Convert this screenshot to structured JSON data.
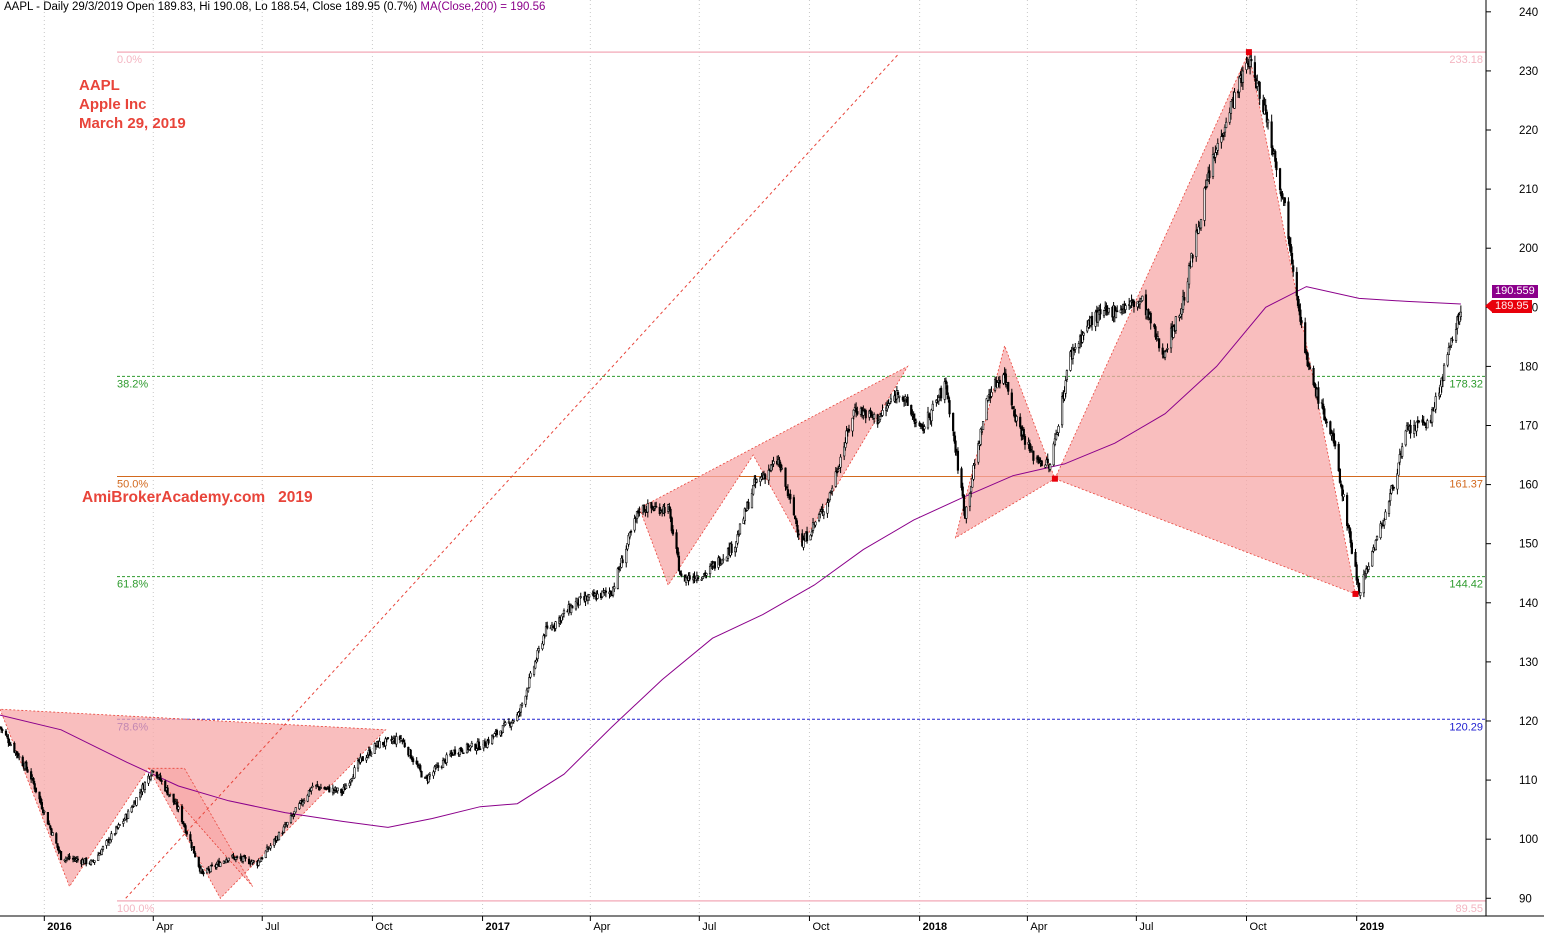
{
  "header": {
    "main": "AAPL - Daily 29/3/2019 Open 189.83, Hi 190.08, Lo 188.54, Close 189.95 (0.7%)",
    "ma": "MA(Close,200) = 190.56"
  },
  "annotation": {
    "symbol": "AAPL",
    "company": "Apple Inc",
    "date": "March 29, 2019",
    "watermark": "AmiBrokerAcademy.com   2019"
  },
  "price_tags": {
    "ma": "190.559",
    "close": "189.95"
  },
  "colors": {
    "candle": "#000000",
    "ma": "#8b008b",
    "pattern_fill": "#f7a8a8",
    "pattern_line": "#e8443a",
    "fib_green": "#2e9b2e",
    "fib_orange": "#d2691e",
    "fib_blue": "#2020d0",
    "fib_pink": "#f4b6c2",
    "close_tag": "#e8000b"
  },
  "chart_data": {
    "type": "line",
    "title": "AAPL - Daily",
    "y_axis_side": "right",
    "ylim": [
      87,
      242
    ],
    "yticks": [
      90,
      100,
      110,
      120,
      130,
      140,
      150,
      160,
      170,
      180,
      190,
      200,
      210,
      220,
      230,
      240
    ],
    "xlim": [
      "2015-11-25",
      "2019-04-19"
    ],
    "xticks": [
      {
        "date": "2016-01-01",
        "label": "2016",
        "bold": true
      },
      {
        "date": "2016-04-01",
        "label": "Apr"
      },
      {
        "date": "2016-07-01",
        "label": "Jul"
      },
      {
        "date": "2016-10-01",
        "label": "Oct"
      },
      {
        "date": "2017-01-01",
        "label": "2017",
        "bold": true
      },
      {
        "date": "2017-04-01",
        "label": "Apr"
      },
      {
        "date": "2017-07-01",
        "label": "Jul"
      },
      {
        "date": "2017-10-01",
        "label": "Oct"
      },
      {
        "date": "2018-01-01",
        "label": "2018",
        "bold": true
      },
      {
        "date": "2018-04-01",
        "label": "Apr"
      },
      {
        "date": "2018-07-01",
        "label": "Jul"
      },
      {
        "date": "2018-10-01",
        "label": "Oct"
      },
      {
        "date": "2019-01-01",
        "label": "2019",
        "bold": true
      }
    ],
    "grid": "vertical dotted",
    "price_series": {
      "name": "AAPL",
      "x": [
        "2015-11-25",
        "2015-12-20",
        "2016-01-15",
        "2016-02-10",
        "2016-03-10",
        "2016-04-01",
        "2016-04-22",
        "2016-05-12",
        "2016-06-03",
        "2016-06-27",
        "2016-07-20",
        "2016-08-12",
        "2016-09-06",
        "2016-09-20",
        "2016-10-05",
        "2016-10-25",
        "2016-11-14",
        "2016-12-09",
        "2017-01-02",
        "2017-01-31",
        "2017-02-22",
        "2017-03-20",
        "2017-04-19",
        "2017-05-12",
        "2017-06-05",
        "2017-06-16",
        "2017-07-07",
        "2017-07-31",
        "2017-08-16",
        "2017-09-05",
        "2017-09-25",
        "2017-10-16",
        "2017-11-08",
        "2017-11-27",
        "2017-12-15",
        "2018-01-02",
        "2018-01-23",
        "2018-02-08",
        "2018-02-27",
        "2018-03-12",
        "2018-03-23",
        "2018-04-05",
        "2018-04-20",
        "2018-05-07",
        "2018-05-25",
        "2018-06-18",
        "2018-07-06",
        "2018-07-23",
        "2018-08-08",
        "2018-08-30",
        "2018-09-14",
        "2018-10-03",
        "2018-10-17",
        "2018-11-02",
        "2018-11-21",
        "2018-12-13",
        "2019-01-03",
        "2019-01-25",
        "2019-02-12",
        "2019-03-04",
        "2019-03-20",
        "2019-03-29"
      ],
      "close": [
        119,
        111,
        97,
        96,
        104,
        112,
        105,
        94,
        97,
        96,
        102,
        109,
        108,
        113,
        116,
        117,
        110,
        115,
        116,
        121,
        135,
        140,
        142,
        156,
        156,
        144,
        145,
        150,
        160,
        164,
        150,
        157,
        173,
        171,
        176,
        169,
        177,
        155,
        175,
        179,
        171,
        165,
        163,
        182,
        188,
        190,
        191,
        182,
        190,
        212,
        222,
        232,
        223,
        207,
        180,
        167,
        142,
        155,
        169,
        171,
        183,
        189.95
      ]
    },
    "moving_average": {
      "name": "MA(Close,200)",
      "x": [
        "2015-11-25",
        "2016-01-15",
        "2016-03-10",
        "2016-04-22",
        "2016-06-03",
        "2016-07-20",
        "2016-09-06",
        "2016-10-14",
        "2016-11-20",
        "2016-12-30",
        "2017-01-30",
        "2017-03-10",
        "2017-04-19",
        "2017-05-31",
        "2017-07-12",
        "2017-08-23",
        "2017-10-05",
        "2017-11-15",
        "2017-12-27",
        "2018-02-08",
        "2018-03-20",
        "2018-05-02",
        "2018-06-13",
        "2018-07-25",
        "2018-09-06",
        "2018-10-17",
        "2018-11-20",
        "2019-01-03",
        "2019-02-12",
        "2019-03-29"
      ],
      "values": [
        121,
        118.5,
        113,
        109,
        106.5,
        104.5,
        103,
        102,
        103.5,
        105.5,
        106,
        111,
        119,
        127,
        134,
        138,
        143,
        149,
        154,
        158,
        161.5,
        163.5,
        167,
        172,
        180,
        190,
        193.5,
        191.5,
        191,
        190.56
      ]
    },
    "fibonacci": [
      {
        "label": "0.0%",
        "value": 233.18,
        "value_label": "233.18",
        "color": "pink"
      },
      {
        "label": "38.2%",
        "value": 178.32,
        "value_label": "178.32",
        "color": "green"
      },
      {
        "label": "50.0%",
        "value": 161.37,
        "value_label": "161.37",
        "color": "orange"
      },
      {
        "label": "61.8%",
        "value": 144.42,
        "value_label": "144.42",
        "color": "green"
      },
      {
        "label": "78.6%",
        "value": 120.29,
        "value_label": "120.29",
        "color": "blue"
      },
      {
        "label": "100.0%",
        "value": 89.55,
        "value_label": "89.55",
        "color": "pink"
      }
    ],
    "trendline": {
      "from": {
        "date": "2016-03-09",
        "price": 90
      },
      "to": {
        "date": "2017-12-15",
        "price": 233
      }
    },
    "patterns": [
      {
        "points": [
          [
            "2015-11-25",
            122
          ],
          [
            "2016-01-22",
            92
          ],
          [
            "2016-03-28",
            112
          ],
          [
            "2016-05-27",
            90
          ],
          [
            "2016-10-12",
            118.5
          ]
        ]
      },
      {
        "points": [
          [
            "2016-03-28",
            112
          ],
          [
            "2016-04-27",
            112
          ],
          [
            "2016-06-23",
            92
          ]
        ]
      },
      {
        "points": [
          [
            "2017-05-12",
            156
          ],
          [
            "2017-06-05",
            143
          ],
          [
            "2017-08-15",
            165
          ],
          [
            "2017-09-25",
            150
          ],
          [
            "2017-12-22",
            180
          ]
        ]
      },
      {
        "points": [
          [
            "2018-01-31",
            151
          ],
          [
            "2018-03-13",
            183.5
          ],
          [
            "2018-04-24",
            161
          ]
        ]
      },
      {
        "points": [
          [
            "2018-04-24",
            161
          ],
          [
            "2018-10-03",
            233.18
          ],
          [
            "2018-12-31",
            141.5
          ]
        ]
      }
    ],
    "pivot_markers": [
      {
        "date": "2018-10-03",
        "price": 233.18
      },
      {
        "date": "2018-04-24",
        "price": 161
      },
      {
        "date": "2018-12-31",
        "price": 141.5
      }
    ],
    "last": {
      "ma": 190.56,
      "close": 189.95
    }
  }
}
